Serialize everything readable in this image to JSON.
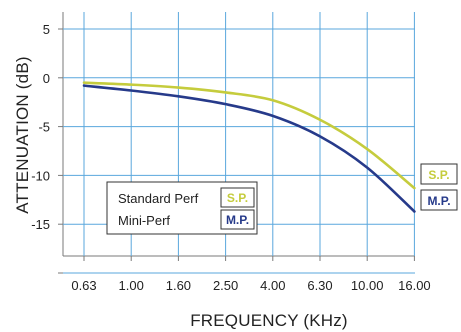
{
  "chart_data": {
    "type": "line",
    "title": "",
    "xlabel": "FREQUENCY (KHz)",
    "ylabel": "ATTENUATION (dB)",
    "x_categories": [
      "0.63",
      "1.00",
      "1.60",
      "2.50",
      "4.00",
      "6.30",
      "10.00",
      "16.00"
    ],
    "y_ticks": [
      5,
      0,
      -5,
      -10,
      -15
    ],
    "ylim": [
      -20,
      5
    ],
    "grid": true,
    "legend_position": "bottom-left",
    "series": [
      {
        "name": "Standard Perf",
        "tag": "S.P.",
        "color": "#c5cc3d",
        "x": [
          "0.63",
          "1.00",
          "1.60",
          "2.50",
          "4.00",
          "6.30",
          "10.00",
          "16.00"
        ],
        "values": [
          -0.5,
          -0.7,
          -1.0,
          -1.5,
          -2.3,
          -4.3,
          -7.3,
          -11.3
        ]
      },
      {
        "name": "Mini-Perf",
        "tag": "M.P.",
        "color": "#263a8a",
        "x": [
          "0.63",
          "1.00",
          "1.60",
          "2.50",
          "4.00",
          "6.30",
          "10.00",
          "16.00"
        ],
        "values": [
          -0.8,
          -1.3,
          -1.9,
          -2.7,
          -3.9,
          -6.0,
          -9.2,
          -13.7
        ]
      }
    ],
    "colors": {
      "grid": "#5aa7dd",
      "axis": "#7a7a7a"
    }
  }
}
